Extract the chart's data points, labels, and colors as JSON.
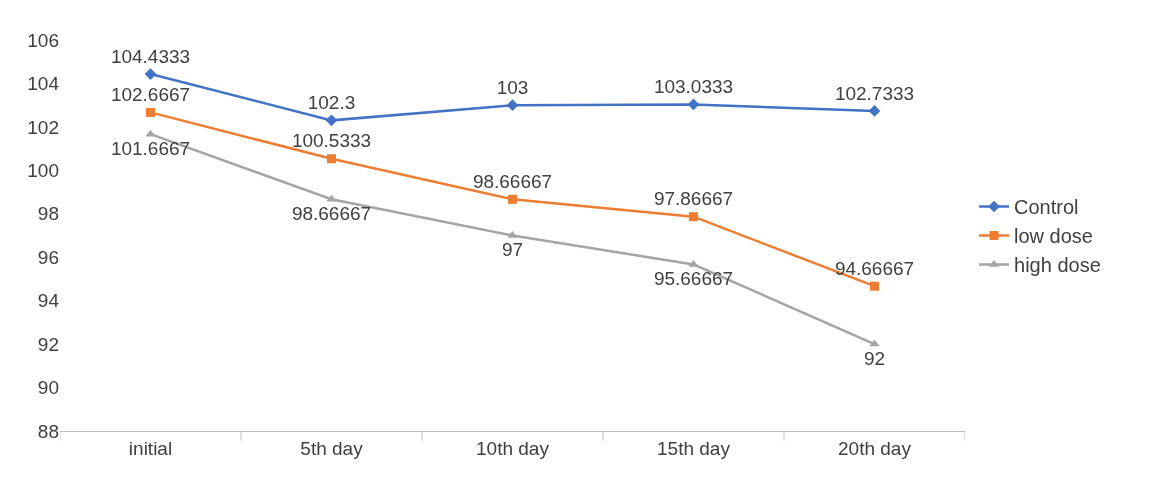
{
  "chart_data": {
    "type": "line",
    "categories": [
      "initial",
      "5th day",
      "10th day",
      "15th day",
      "20th day"
    ],
    "series": [
      {
        "name": "Control",
        "color": "#4472c4",
        "marker": "diamond",
        "values": [
          104.4333,
          102.3,
          103,
          103.0333,
          102.7333
        ]
      },
      {
        "name": "low dose",
        "color": "#ed7d31",
        "marker": "square",
        "values": [
          102.6667,
          100.5333,
          98.66667,
          97.86667,
          94.66667
        ]
      },
      {
        "name": "high dose",
        "color": "#a5a5a5",
        "marker": "triangle",
        "values": [
          101.6667,
          98.66667,
          97,
          95.66667,
          92
        ]
      }
    ],
    "ylim": [
      88,
      106
    ],
    "yticks": [
      88,
      90,
      92,
      94,
      96,
      98,
      100,
      102,
      104,
      106
    ],
    "legend": "right",
    "data_labels": true,
    "line_style": "solid"
  }
}
